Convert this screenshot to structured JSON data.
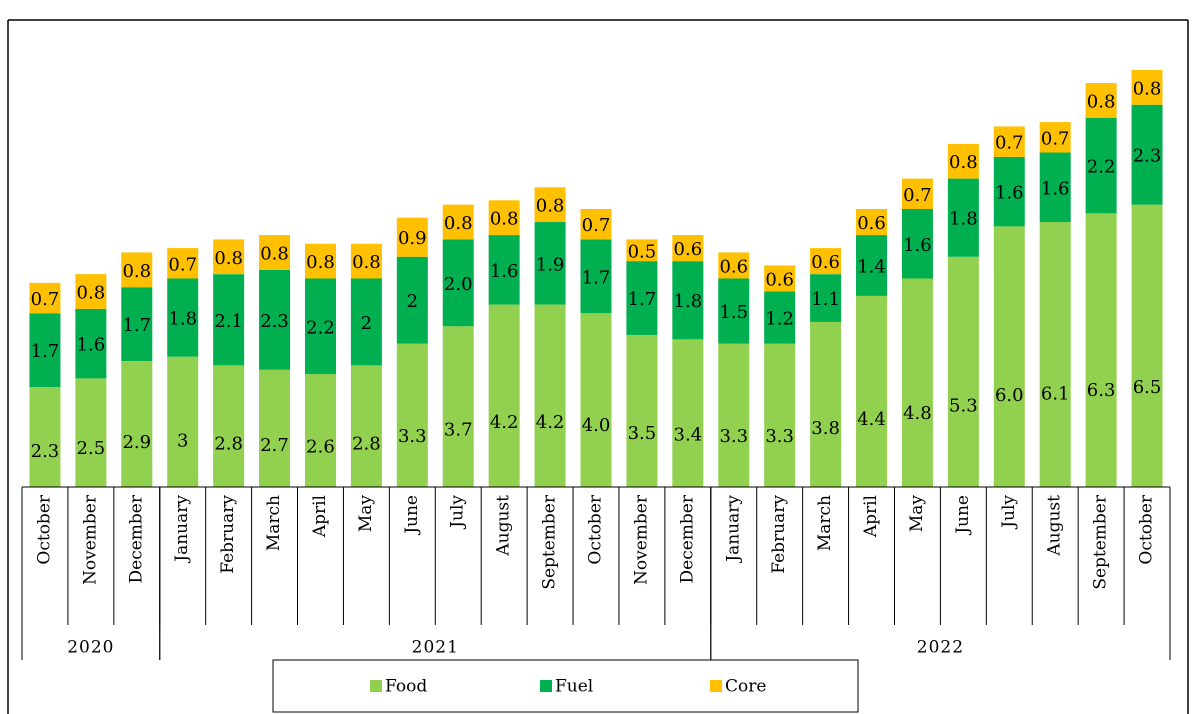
{
  "chart_data": {
    "type": "stacked_bar",
    "category_groups": [
      {
        "label": "2020",
        "categories": [
          "October",
          "November",
          "December"
        ]
      },
      {
        "label": "2021",
        "categories": [
          "January",
          "February",
          "March",
          "April",
          "May",
          "June",
          "July",
          "August",
          "September",
          "October",
          "November",
          "December"
        ]
      },
      {
        "label": "2022",
        "categories": [
          "January",
          "February",
          "March",
          "April",
          "May",
          "June",
          "July",
          "August",
          "September",
          "October"
        ]
      }
    ],
    "series": [
      {
        "name": "Food",
        "color": "#92d050",
        "values": [
          2.3,
          2.5,
          2.9,
          3,
          2.8,
          2.7,
          2.6,
          2.8,
          3.3,
          3.7,
          4.2,
          4.2,
          4.0,
          3.5,
          3.4,
          3.3,
          3.3,
          3.8,
          4.4,
          4.8,
          5.3,
          6.0,
          6.1,
          6.3,
          6.5
        ],
        "value_labels": [
          "2.3",
          "2.5",
          "2.9",
          "3",
          "2.8",
          "2.7",
          "2.6",
          "2.8",
          "3.3",
          "3.7",
          "4.2",
          "4.2",
          "4.0",
          "3.5",
          "3.4",
          "3.3",
          "3.3",
          "3.8",
          "4.4",
          "4.8",
          "5.3",
          "6.0",
          "6.1",
          "6.3",
          "6.5"
        ]
      },
      {
        "name": "Fuel",
        "color": "#00b050",
        "values": [
          1.7,
          1.6,
          1.7,
          1.8,
          2.1,
          2.3,
          2.2,
          2,
          2,
          2.0,
          1.6,
          1.9,
          1.7,
          1.7,
          1.8,
          1.5,
          1.2,
          1.1,
          1.4,
          1.6,
          1.8,
          1.6,
          1.6,
          2.2,
          2.3
        ],
        "value_labels": [
          "1.7",
          "1.6",
          "1.7",
          "1.8",
          "2.1",
          "2.3",
          "2.2",
          "2",
          "2",
          "2.0",
          "1.6",
          "1.9",
          "1.7",
          "1.7",
          "1.8",
          "1.5",
          "1.2",
          "1.1",
          "1.4",
          "1.6",
          "1.8",
          "1.6",
          "1.6",
          "2.2",
          "2.3"
        ]
      },
      {
        "name": "Core",
        "color": "#ffc000",
        "values": [
          0.7,
          0.8,
          0.8,
          0.7,
          0.8,
          0.8,
          0.8,
          0.8,
          0.9,
          0.8,
          0.8,
          0.8,
          0.7,
          0.5,
          0.6,
          0.6,
          0.6,
          0.6,
          0.6,
          0.7,
          0.8,
          0.7,
          0.7,
          0.8,
          0.8
        ],
        "value_labels": [
          "0.7",
          "0.8",
          "0.8",
          "0.7",
          "0.8",
          "0.8",
          "0.8",
          "0.8",
          "0.9",
          "0.8",
          "0.8",
          "0.8",
          "0.7",
          "0.5",
          "0.6",
          "0.6",
          "0.6",
          "0.6",
          "0.6",
          "0.7",
          "0.8",
          "0.7",
          "0.7",
          "0.8",
          "0.8"
        ]
      }
    ],
    "legend": "bottom"
  }
}
